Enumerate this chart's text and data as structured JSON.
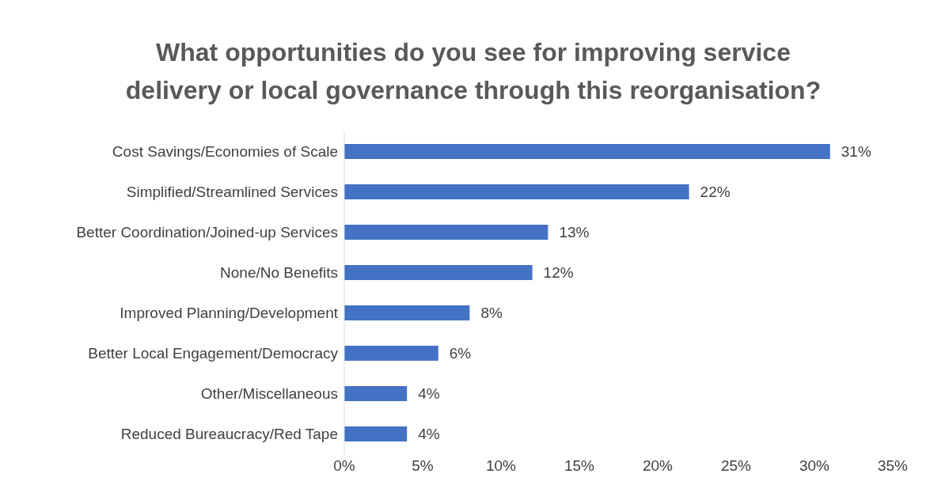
{
  "chart_data": {
    "type": "bar",
    "orientation": "horizontal",
    "title": "What opportunities do you see for improving service delivery or local governance through this reorganisation?",
    "categories": [
      "Cost Savings/Economies of Scale",
      "Simplified/Streamlined Services",
      "Better Coordination/Joined-up Services",
      "None/No Benefits",
      "Improved Planning/Development",
      "Better Local Engagement/Democracy",
      "Other/Miscellaneous",
      "Reduced Bureaucracy/Red Tape"
    ],
    "values": [
      31,
      22,
      13,
      12,
      8,
      6,
      4,
      4
    ],
    "value_labels": [
      "31%",
      "22%",
      "13%",
      "12%",
      "8%",
      "6%",
      "4%",
      "4%"
    ],
    "color": "#4472c4",
    "xlim": [
      0,
      35
    ],
    "xticks": [
      {
        "value": 0,
        "label": "0%"
      },
      {
        "value": 5,
        "label": "5%"
      },
      {
        "value": 10,
        "label": "10%"
      },
      {
        "value": 15,
        "label": "15%"
      },
      {
        "value": 20,
        "label": "20%"
      },
      {
        "value": 25,
        "label": "25%"
      },
      {
        "value": 30,
        "label": "30%"
      },
      {
        "value": 35,
        "label": "35%"
      }
    ],
    "grid": false,
    "legend": false
  }
}
